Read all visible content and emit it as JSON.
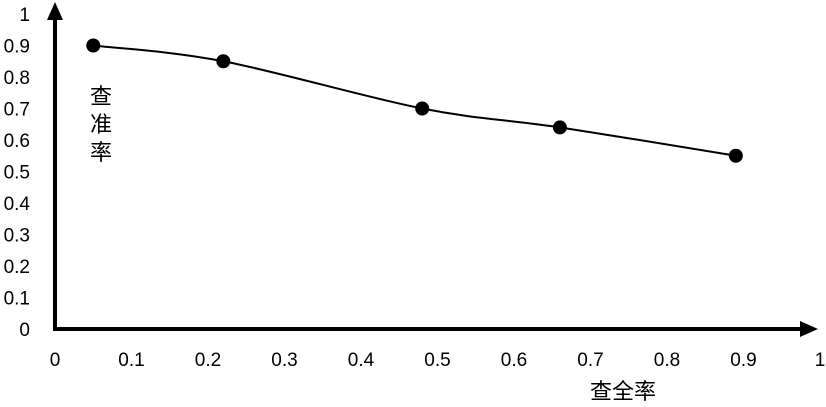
{
  "chart_data": {
    "type": "line",
    "title": "",
    "xlabel": "查全率",
    "ylabel": "查准率",
    "xlim": [
      0,
      1
    ],
    "ylim": [
      0,
      1
    ],
    "x_ticks": [
      "0",
      "0.1",
      "0.2",
      "0.3",
      "0.4",
      "0.5",
      "0.6",
      "0.7",
      "0.8",
      "0.9",
      "1"
    ],
    "y_ticks": [
      "0",
      "0.1",
      "0.2",
      "0.3",
      "0.4",
      "0.5",
      "0.6",
      "0.7",
      "0.8",
      "0.9",
      "1"
    ],
    "grid": false,
    "legend": "none",
    "smooth": true,
    "series": [
      {
        "x": [
          0.05,
          0.22,
          0.48,
          0.66,
          0.89
        ],
        "y": [
          0.9,
          0.85,
          0.7,
          0.64,
          0.55
        ]
      }
    ],
    "colors": {
      "line": "#000000",
      "marker": "#000000",
      "axis": "#000000"
    }
  }
}
